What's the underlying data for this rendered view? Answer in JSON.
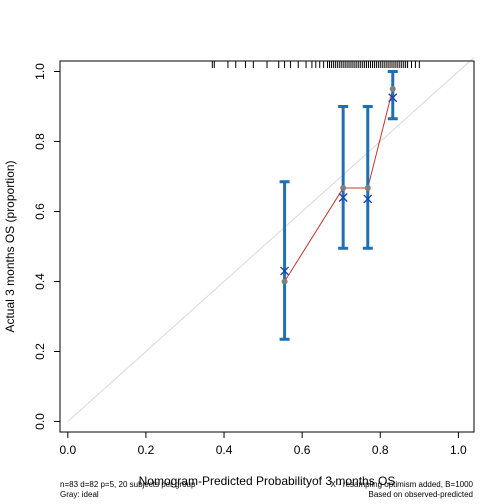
{
  "chart_data": {
    "type": "scatter",
    "xlabel": "Nomogram-Predicted Probabilityof 3 months OS",
    "ylabel": "Actual 3 months OS (proportion)",
    "xlim": [
      -0.02,
      1.04
    ],
    "ylim": [
      -0.03,
      1.03
    ],
    "x_ticks": [
      0.0,
      0.2,
      0.4,
      0.6,
      0.8,
      1.0
    ],
    "y_ticks": [
      0.0,
      0.2,
      0.4,
      0.6,
      0.8,
      1.0
    ],
    "grid": false,
    "ideal_line": {
      "x": [
        0,
        1.04
      ],
      "y": [
        0,
        1.04
      ],
      "color": "#d9d9d9"
    },
    "observed": {
      "x": [
        0.555,
        0.705,
        0.768,
        0.832
      ],
      "y": [
        0.4,
        0.667,
        0.667,
        0.95
      ],
      "color": "#7f7f7f",
      "line_color": "#c0392b"
    },
    "corrected": {
      "x": [
        0.555,
        0.705,
        0.768,
        0.832
      ],
      "y": [
        0.43,
        0.64,
        0.636,
        0.925
      ],
      "marker": "x",
      "color": "#1a3fb0"
    },
    "error_bars": {
      "x": [
        0.555,
        0.705,
        0.768,
        0.832
      ],
      "lower": [
        0.235,
        0.495,
        0.495,
        0.865
      ],
      "upper": [
        0.685,
        0.9,
        0.9,
        1.0
      ],
      "color": "#1f6fb5"
    },
    "rug": [
      0.37,
      0.375,
      0.41,
      0.43,
      0.455,
      0.475,
      0.51,
      0.54,
      0.555,
      0.57,
      0.59,
      0.61,
      0.625,
      0.635,
      0.645,
      0.655,
      0.665,
      0.67,
      0.675,
      0.68,
      0.685,
      0.69,
      0.695,
      0.7,
      0.705,
      0.71,
      0.715,
      0.72,
      0.725,
      0.73,
      0.735,
      0.74,
      0.745,
      0.75,
      0.755,
      0.76,
      0.765,
      0.77,
      0.775,
      0.78,
      0.785,
      0.79,
      0.795,
      0.8,
      0.805,
      0.81,
      0.815,
      0.82,
      0.825,
      0.83,
      0.835,
      0.84,
      0.845,
      0.85,
      0.855,
      0.86,
      0.865,
      0.87,
      0.88,
      0.89,
      0.9
    ]
  },
  "footer": {
    "left_line1": "n=83 d=82 p=5, 20 subjects per group",
    "left_line2": "Gray: ideal",
    "right_line1": "X - resampling optimism added, B=1000",
    "right_line2": "Based on observed-predicted"
  }
}
